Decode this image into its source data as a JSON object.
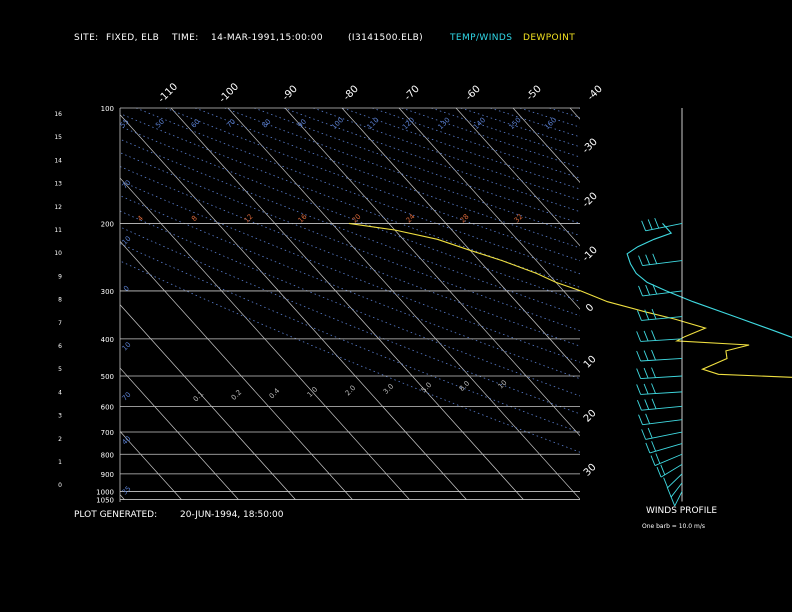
{
  "header": {
    "site_label": "SITE:",
    "site_value": "FIXED, ELB",
    "time_label": "TIME:",
    "time_value": "14-MAR-1991,15:00:00",
    "file": "(I3141500.ELB)",
    "legend_temp": "TEMP/WINDS",
    "legend_dew": "DEWPOINT"
  },
  "footer": {
    "generated_label": "PLOT GENERATED:",
    "generated_value": "20-JUN-1994, 18:50:00",
    "winds_title": "WINDS PROFILE",
    "barb_note": "One barb = 10.0 m/s"
  },
  "colors": {
    "background": "#000000",
    "grid": "#c8c8c8",
    "temperature": "#3fd9e0",
    "dewpoint": "#f0e040",
    "dry_adiabat": "#5a7fd0",
    "mixing_ratio": "#d9683a",
    "text_header_temp": "#30d8e8",
    "text_header_dew": "#f0e020"
  },
  "chart_data": {
    "type": "line",
    "pressure_levels": [
      "100",
      "200",
      "300",
      "400",
      "500",
      "600",
      "700",
      "800",
      "900",
      "1000",
      "1050"
    ],
    "height_ticks": [
      "16",
      "15",
      "14",
      "13",
      "12",
      "11",
      "10",
      "9",
      "8",
      "7",
      "6",
      "5",
      "4",
      "3",
      "2",
      "1",
      "0"
    ],
    "skew_temp_labels": [
      "-110",
      "-100",
      "-90",
      "-80",
      "-70",
      "-60",
      "-50",
      "-40"
    ],
    "right_temp_labels": [
      "-30",
      "-20",
      "-10",
      "0",
      "10",
      "20",
      "30"
    ],
    "isotherm_range_c": [
      -180,
      40
    ],
    "mixing_ratio_labels": [
      "4",
      "8",
      "12",
      "16",
      "20",
      "24",
      "28",
      "32"
    ],
    "dry_adiabat_labels": [
      "55",
      "50",
      "60",
      "70",
      "80",
      "90",
      "100",
      "110",
      "120",
      "130",
      "140",
      "150",
      "160"
    ],
    "small_ratio_labels": [
      "0.1",
      "0.2",
      "0.4",
      "1.0",
      "2.0",
      "3.0",
      "5.0",
      "8.0",
      "10"
    ],
    "side_adiabat_labels": [
      "70",
      "10",
      "0",
      "10",
      "70",
      "40",
      "35"
    ],
    "series": [
      {
        "name": "TEMP/WINDS",
        "points": [
          {
            "p": 790,
            "t": -8
          },
          {
            "p": 770,
            "t": -8
          },
          {
            "p": 745,
            "t": -7
          },
          {
            "p": 710,
            "t": -6
          },
          {
            "p": 680,
            "t": -7.5
          },
          {
            "p": 650,
            "t": -9
          },
          {
            "p": 620,
            "t": -11
          },
          {
            "p": 600,
            "t": -13
          },
          {
            "p": 570,
            "t": -15
          },
          {
            "p": 540,
            "t": -18.5
          },
          {
            "p": 520,
            "t": -21
          },
          {
            "p": 500,
            "t": -23
          },
          {
            "p": 470,
            "t": -27
          },
          {
            "p": 440,
            "t": -31
          },
          {
            "p": 410,
            "t": -35.5
          },
          {
            "p": 380,
            "t": -39.5
          },
          {
            "p": 350,
            "t": -44
          },
          {
            "p": 320,
            "t": -49
          },
          {
            "p": 300,
            "t": -52
          },
          {
            "p": 285,
            "t": -54
          },
          {
            "p": 270,
            "t": -54.5
          },
          {
            "p": 255,
            "t": -54
          },
          {
            "p": 240,
            "t": -53
          },
          {
            "p": 230,
            "t": -50
          },
          {
            "p": 220,
            "t": -46
          },
          {
            "p": 212,
            "t": -42
          },
          {
            "p": 200,
            "t": -42
          }
        ]
      },
      {
        "name": "DEWPOINT",
        "points": [
          {
            "p": 790,
            "t": -26
          },
          {
            "p": 760,
            "t": -26
          },
          {
            "p": 740,
            "t": -25
          },
          {
            "p": 710,
            "t": -26
          },
          {
            "p": 680,
            "t": -26
          },
          {
            "p": 650,
            "t": -26
          },
          {
            "p": 620,
            "t": -26
          },
          {
            "p": 600,
            "t": -27
          },
          {
            "p": 570,
            "t": -28
          },
          {
            "p": 540,
            "t": -31
          },
          {
            "p": 520,
            "t": -34
          },
          {
            "p": 505,
            "t": -42
          },
          {
            "p": 495,
            "t": -56
          },
          {
            "p": 480,
            "t": -58
          },
          {
            "p": 465,
            "t": -55
          },
          {
            "p": 450,
            "t": -52
          },
          {
            "p": 430,
            "t": -51
          },
          {
            "p": 415,
            "t": -46
          },
          {
            "p": 405,
            "t": -58
          },
          {
            "p": 395,
            "t": -56
          },
          {
            "p": 375,
            "t": -51
          },
          {
            "p": 355,
            "t": -55
          },
          {
            "p": 340,
            "t": -59
          },
          {
            "p": 320,
            "t": -64
          },
          {
            "p": 300,
            "t": -67
          },
          {
            "p": 285,
            "t": -70
          },
          {
            "p": 270,
            "t": -72
          },
          {
            "p": 250,
            "t": -76
          },
          {
            "p": 235,
            "t": -80
          },
          {
            "p": 220,
            "t": -84
          },
          {
            "p": 208,
            "t": -90
          },
          {
            "p": 200,
            "t": -97
          }
        ]
      }
    ],
    "winds": [
      {
        "p": 200,
        "dir": 300,
        "speed": 30
      },
      {
        "p": 250,
        "dir": 290,
        "speed": 30
      },
      {
        "p": 300,
        "dir": 290,
        "speed": 25
      },
      {
        "p": 350,
        "dir": 285,
        "speed": 25
      },
      {
        "p": 400,
        "dir": 280,
        "speed": 25
      },
      {
        "p": 450,
        "dir": 280,
        "speed": 30
      },
      {
        "p": 500,
        "dir": 280,
        "speed": 25
      },
      {
        "p": 550,
        "dir": 280,
        "speed": 25
      },
      {
        "p": 600,
        "dir": 285,
        "speed": 25
      },
      {
        "p": 650,
        "dir": 290,
        "speed": 20
      },
      {
        "p": 700,
        "dir": 300,
        "speed": 20
      },
      {
        "p": 750,
        "dir": 310,
        "speed": 15
      },
      {
        "p": 800,
        "dir": 320,
        "speed": 15
      },
      {
        "p": 850,
        "dir": 330,
        "speed": 15
      },
      {
        "p": 900,
        "dir": 340,
        "speed": 10
      },
      {
        "p": 950,
        "dir": 345,
        "speed": 10
      },
      {
        "p": 1000,
        "dir": 350,
        "speed": 10
      }
    ]
  }
}
